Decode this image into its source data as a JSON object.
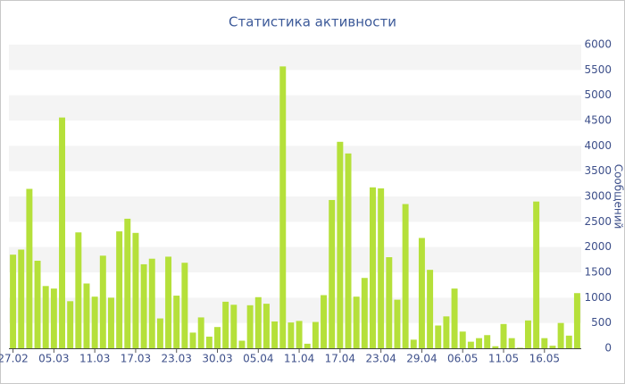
{
  "chart_data": {
    "type": "bar",
    "title": "Статистика активности",
    "y_axis_label": "Сообщений",
    "categories": [
      "27.02",
      null,
      null,
      null,
      null,
      "05.03",
      null,
      null,
      null,
      null,
      "11.03",
      null,
      null,
      null,
      null,
      "17.03",
      null,
      null,
      null,
      null,
      "23.03",
      null,
      null,
      null,
      null,
      "30.03",
      null,
      null,
      null,
      null,
      "05.04",
      null,
      null,
      null,
      null,
      "11.04",
      null,
      null,
      null,
      null,
      "17.04",
      null,
      null,
      null,
      null,
      "23.04",
      null,
      null,
      null,
      null,
      "29.04",
      null,
      null,
      null,
      null,
      "06.05",
      null,
      null,
      null,
      null,
      "11.05",
      null,
      null,
      null,
      null,
      "16.05",
      null,
      null,
      null,
      null
    ],
    "values": [
      1850,
      1950,
      3150,
      1730,
      1230,
      1180,
      4560,
      930,
      2290,
      1280,
      1020,
      1830,
      1000,
      2310,
      2560,
      2280,
      1660,
      1770,
      590,
      1810,
      1040,
      1690,
      310,
      610,
      230,
      420,
      920,
      860,
      150,
      850,
      1010,
      880,
      530,
      5570,
      510,
      540,
      90,
      520,
      1050,
      2930,
      4080,
      3850,
      1020,
      1390,
      3180,
      3160,
      1800,
      960,
      2850,
      170,
      2180,
      1550,
      450,
      630,
      1180,
      330,
      130,
      200,
      260,
      40,
      480,
      200,
      10,
      550,
      2900,
      200,
      50,
      500,
      250,
      1090
    ],
    "color": "#b5e03a",
    "ylim": [
      0,
      6000
    ],
    "yticks": [
      0,
      500,
      1000,
      1500,
      2000,
      2500,
      3000,
      3500,
      4000,
      4500,
      5000,
      5500,
      6000
    ],
    "grid": true
  }
}
